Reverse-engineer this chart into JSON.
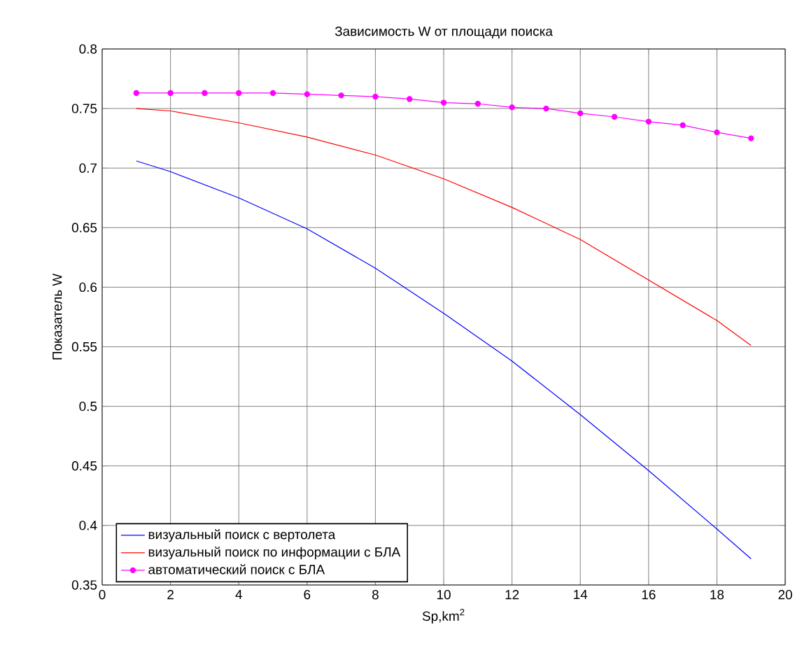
{
  "chart_data": {
    "type": "line",
    "title": "Зависимость W от площади поиска",
    "xlabel": "Sp,km$^{2}$",
    "ylabel": "Показатель W",
    "xlim": [
      0,
      20
    ],
    "ylim": [
      0.35,
      0.8
    ],
    "xticks": [
      0,
      2,
      4,
      6,
      8,
      10,
      12,
      14,
      16,
      18,
      20
    ],
    "yticks": [
      0.35,
      0.4,
      0.45,
      0.5,
      0.55,
      0.6,
      0.65,
      0.7,
      0.75,
      0.8
    ],
    "grid": true,
    "legend": "bottom left",
    "series": [
      {
        "name": "визуальный поиск с вертолета",
        "color": "#0000ff",
        "x": [
          1,
          2,
          4,
          6,
          8,
          10,
          12,
          14,
          16,
          18,
          19
        ],
        "values": [
          0.706,
          0.697,
          0.675,
          0.649,
          0.616,
          0.578,
          0.538,
          0.493,
          0.446,
          0.397,
          0.372
        ]
      },
      {
        "name": "визуальный поиск по информации с БЛА",
        "color": "#ff0000",
        "x": [
          1,
          2,
          4,
          6,
          8,
          10,
          12,
          14,
          16,
          18,
          19
        ],
        "values": [
          0.75,
          0.748,
          0.738,
          0.726,
          0.711,
          0.691,
          0.667,
          0.64,
          0.606,
          0.572,
          0.551
        ]
      },
      {
        "name": "автоматический поиск с БЛА",
        "color": "#ff00ff",
        "marker": "circle",
        "x": [
          1,
          2,
          3,
          4,
          5,
          6,
          7,
          8,
          9,
          10,
          11,
          12,
          13,
          14,
          15,
          16,
          17,
          18,
          19
        ],
        "values": [
          0.763,
          0.763,
          0.763,
          0.763,
          0.763,
          0.762,
          0.761,
          0.76,
          0.758,
          0.755,
          0.754,
          0.751,
          0.75,
          0.746,
          0.743,
          0.739,
          0.736,
          0.73,
          0.725
        ]
      }
    ]
  }
}
